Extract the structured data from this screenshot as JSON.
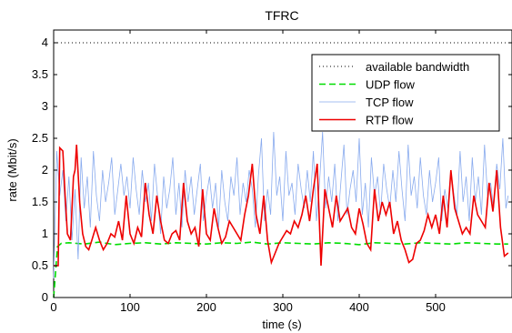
{
  "chart_data": {
    "type": "line",
    "title": "TFRC",
    "xlabel": "time (s)",
    "ylabel": "rate (Mbit/s)",
    "xlim": [
      0,
      600
    ],
    "ylim": [
      0,
      4.2
    ],
    "xticks": [
      "0",
      "100",
      "200",
      "300",
      "400",
      "500"
    ],
    "yticks": [
      "0",
      "0.5",
      "1",
      "1.5",
      "2",
      "2.5",
      "3",
      "3.5",
      "4"
    ],
    "grid": false,
    "legend_position": "top-right",
    "series": [
      {
        "name": "available bandwidth",
        "color": "#000000",
        "style": "dotted",
        "x": [
          0,
          600
        ],
        "y": [
          4.0,
          4.0
        ]
      },
      {
        "name": "UDP flow",
        "color": "#00dd00",
        "style": "dashed",
        "x": [
          0,
          5,
          10,
          20,
          40,
          60,
          80,
          100,
          120,
          140,
          160,
          180,
          200,
          220,
          240,
          260,
          280,
          300,
          320,
          340,
          360,
          380,
          400,
          420,
          440,
          460,
          480,
          500,
          520,
          540,
          560,
          580,
          595
        ],
        "y": [
          0.0,
          0.8,
          0.85,
          0.86,
          0.84,
          0.87,
          0.83,
          0.85,
          0.86,
          0.84,
          0.86,
          0.85,
          0.84,
          0.86,
          0.85,
          0.87,
          0.84,
          0.86,
          0.85,
          0.84,
          0.86,
          0.85,
          0.83,
          0.86,
          0.85,
          0.84,
          0.86,
          0.85,
          0.84,
          0.86,
          0.85,
          0.84,
          0.84
        ]
      },
      {
        "name": "TCP flow",
        "color": "#88aaee",
        "style": "solid",
        "x": [
          0,
          4,
          8,
          12,
          16,
          20,
          24,
          28,
          32,
          36,
          40,
          44,
          48,
          52,
          56,
          60,
          64,
          68,
          72,
          76,
          80,
          84,
          88,
          92,
          96,
          100,
          104,
          108,
          112,
          116,
          120,
          124,
          128,
          132,
          136,
          140,
          144,
          148,
          152,
          156,
          160,
          164,
          168,
          172,
          176,
          180,
          184,
          188,
          192,
          196,
          200,
          204,
          208,
          212,
          216,
          220,
          224,
          228,
          232,
          236,
          240,
          244,
          248,
          252,
          256,
          260,
          264,
          268,
          272,
          276,
          280,
          284,
          288,
          292,
          296,
          300,
          304,
          308,
          312,
          316,
          320,
          324,
          328,
          332,
          336,
          340,
          344,
          348,
          352,
          356,
          360,
          364,
          368,
          372,
          376,
          380,
          384,
          388,
          392,
          396,
          400,
          404,
          408,
          412,
          416,
          420,
          424,
          428,
          432,
          436,
          440,
          444,
          448,
          452,
          456,
          460,
          464,
          468,
          472,
          476,
          480,
          484,
          488,
          492,
          496,
          500,
          504,
          508,
          512,
          516,
          520,
          524,
          528,
          532,
          536,
          540,
          544,
          548,
          552,
          556,
          560,
          564,
          568,
          572,
          576,
          580,
          584,
          588,
          592,
          595
        ],
        "y": [
          0.3,
          2.3,
          1.6,
          2.0,
          1.2,
          1.9,
          0.9,
          1.7,
          0.6,
          2.2,
          1.4,
          1.9,
          1.1,
          2.3,
          1.6,
          1.2,
          2.0,
          1.5,
          1.8,
          2.2,
          1.3,
          1.7,
          2.1,
          1.6,
          1.9,
          1.4,
          2.2,
          1.7,
          1.3,
          2.0,
          1.5,
          1.8,
          1.2,
          2.1,
          1.6,
          1.0,
          1.9,
          1.4,
          1.7,
          2.2,
          1.3,
          1.8,
          1.1,
          2.0,
          1.5,
          1.9,
          1.3,
          1.7,
          2.1,
          1.2,
          1.6,
          1.9,
          1.4,
          1.8,
          1.1,
          2.0,
          1.5,
          1.2,
          1.9,
          1.6,
          2.2,
          1.3,
          1.8,
          1.5,
          2.0,
          1.7,
          1.1,
          1.9,
          2.5,
          1.2,
          1.7,
          1.3,
          2.6,
          1.6,
          1.9,
          1.2,
          2.3,
          1.6,
          1.8,
          1.3,
          2.1,
          1.7,
          1.4,
          2.0,
          1.5,
          2.3,
          1.2,
          1.8,
          2.6,
          1.4,
          1.9,
          1.5,
          2.1,
          1.2,
          1.8,
          2.4,
          1.3,
          1.7,
          2.0,
          1.5,
          2.5,
          1.3,
          1.8,
          1.1,
          2.2,
          1.6,
          1.9,
          1.3,
          2.1,
          1.7,
          1.4,
          2.0,
          1.5,
          2.3,
          1.7,
          1.2,
          2.4,
          1.6,
          1.9,
          1.4,
          2.2,
          1.6,
          1.3,
          2.0,
          1.5,
          1.8,
          2.2,
          1.2,
          1.7,
          1.4,
          2.0,
          1.6,
          1.3,
          2.3,
          1.5,
          1.9,
          1.2,
          2.2,
          1.5,
          1.9,
          1.3,
          2.4,
          1.6,
          1.8,
          1.4,
          2.1,
          1.7,
          2.5,
          1.4,
          1.6
        ]
      },
      {
        "name": "RTP flow",
        "color": "#ee0000",
        "style": "solid",
        "x": [
          0,
          6,
          8,
          12,
          15,
          18,
          22,
          26,
          28,
          30,
          34,
          38,
          42,
          46,
          50,
          55,
          60,
          65,
          70,
          75,
          80,
          85,
          90,
          95,
          100,
          105,
          110,
          115,
          120,
          125,
          130,
          135,
          140,
          145,
          150,
          155,
          160,
          165,
          170,
          175,
          180,
          185,
          190,
          195,
          200,
          205,
          210,
          215,
          220,
          225,
          230,
          235,
          240,
          245,
          250,
          255,
          260,
          265,
          270,
          275,
          280,
          285,
          290,
          295,
          300,
          305,
          310,
          315,
          320,
          325,
          330,
          335,
          340,
          345,
          350,
          355,
          360,
          365,
          370,
          375,
          380,
          385,
          390,
          395,
          400,
          405,
          410,
          415,
          420,
          425,
          430,
          435,
          440,
          445,
          450,
          455,
          460,
          465,
          470,
          475,
          480,
          485,
          490,
          495,
          500,
          505,
          510,
          515,
          520,
          525,
          530,
          535,
          540,
          545,
          550,
          555,
          560,
          565,
          570,
          575,
          580,
          585,
          590,
          595
        ],
        "y": [
          0.5,
          0.5,
          2.35,
          2.3,
          1.6,
          1.0,
          0.9,
          1.9,
          2.0,
          2.4,
          1.5,
          1.0,
          0.8,
          0.75,
          0.9,
          1.1,
          0.9,
          0.75,
          0.85,
          1.0,
          0.95,
          1.2,
          0.9,
          1.6,
          1.0,
          0.85,
          1.1,
          0.95,
          1.8,
          1.3,
          1.0,
          1.6,
          1.2,
          0.9,
          0.85,
          1.0,
          1.05,
          0.9,
          1.8,
          1.2,
          1.0,
          1.1,
          0.8,
          1.7,
          1.0,
          0.9,
          1.4,
          1.1,
          0.85,
          0.95,
          1.2,
          1.1,
          1.0,
          0.9,
          1.3,
          1.6,
          2.1,
          1.3,
          1.0,
          1.6,
          0.9,
          0.55,
          0.7,
          0.85,
          0.95,
          1.05,
          1.0,
          1.2,
          1.1,
          1.3,
          1.6,
          1.2,
          1.7,
          2.1,
          0.5,
          1.7,
          1.4,
          1.1,
          1.6,
          1.2,
          1.3,
          1.4,
          1.1,
          1.0,
          1.4,
          1.15,
          0.85,
          0.75,
          1.7,
          1.2,
          1.5,
          1.3,
          1.5,
          1.0,
          1.2,
          0.9,
          0.75,
          0.55,
          0.6,
          0.85,
          0.9,
          1.05,
          1.3,
          1.1,
          1.3,
          1.0,
          1.6,
          1.1,
          2.0,
          1.4,
          1.2,
          1.0,
          1.1,
          1.0,
          1.6,
          1.3,
          1.2,
          1.1,
          1.8,
          1.35,
          2.0,
          1.1,
          0.65,
          0.7
        ]
      }
    ]
  }
}
